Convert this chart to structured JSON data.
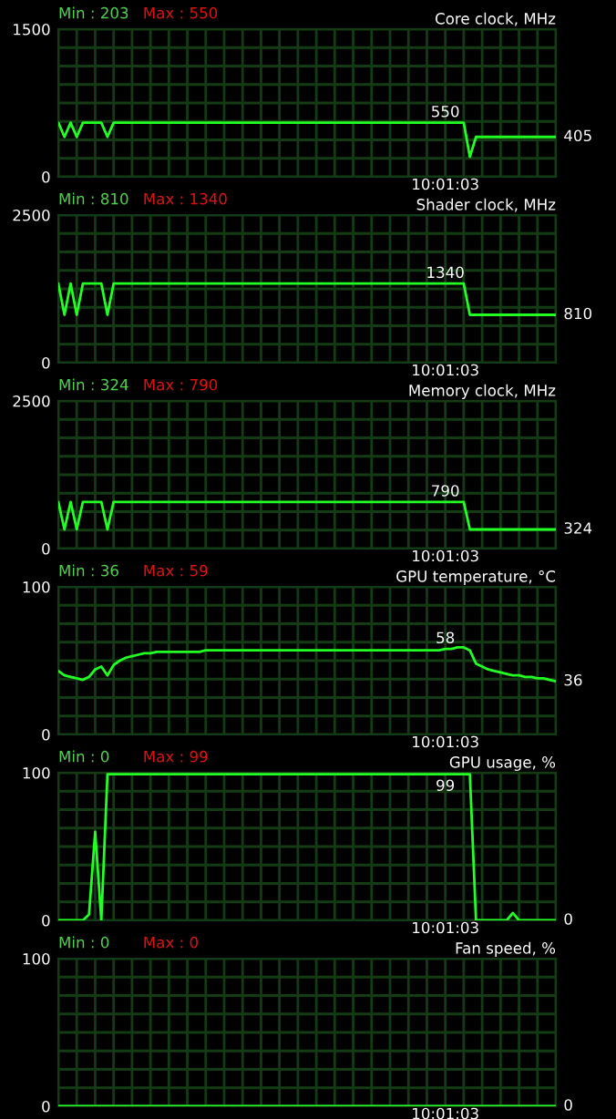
{
  "chart_data": [
    {
      "type": "line",
      "title": "Core clock, MHz",
      "annotations": [
        "Min : 203",
        "Max : 550"
      ],
      "categories": [
        null,
        null,
        null,
        null,
        null,
        null,
        null,
        null,
        null,
        null,
        null,
        null,
        null,
        null,
        null,
        null,
        null,
        null,
        null,
        null,
        null,
        null,
        null,
        null,
        null,
        null,
        null,
        null,
        null,
        null,
        null,
        null,
        null,
        null,
        null,
        null,
        null,
        null,
        null,
        null,
        null,
        null,
        null,
        null,
        null,
        null,
        null,
        null,
        null,
        null,
        null,
        null,
        null,
        null,
        null,
        null,
        null,
        null,
        null,
        null,
        null,
        null,
        null,
        "10:01:03",
        null,
        null,
        null,
        null,
        null,
        null,
        null,
        null,
        null,
        null,
        null,
        null,
        null,
        null,
        null,
        null,
        null,
        null
      ],
      "ylim": [
        0,
        1500
      ],
      "yticks": [
        0,
        {
          "value": 187.5,
          "label": null
        },
        {
          "value": 375,
          "label": null
        },
        {
          "value": 562.5,
          "label": null
        },
        {
          "value": 750,
          "label": null
        },
        {
          "value": 937.5,
          "label": null
        },
        {
          "value": 1125,
          "label": null
        },
        {
          "value": 1312.5,
          "label": null
        },
        1500
      ],
      "grid": true,
      "series": [
        {
          "color": "#22ff22",
          "values": [
            550,
            405,
            550,
            405,
            550,
            550,
            550,
            550,
            405,
            550,
            550,
            550,
            550,
            550,
            550,
            550,
            550,
            550,
            550,
            550,
            550,
            550,
            550,
            550,
            550,
            550,
            550,
            550,
            550,
            550,
            550,
            550,
            550,
            550,
            550,
            550,
            550,
            550,
            550,
            550,
            550,
            550,
            550,
            550,
            550,
            550,
            550,
            550,
            550,
            550,
            550,
            550,
            550,
            550,
            550,
            550,
            550,
            550,
            550,
            550,
            550,
            550,
            550,
            550,
            550,
            550,
            550,
            203,
            405,
            405,
            405,
            405,
            405,
            405,
            405,
            405,
            405,
            405,
            405,
            405,
            405,
            405
          ],
          "value_labels": [
            null,
            null,
            null,
            null,
            null,
            null,
            null,
            null,
            null,
            null,
            null,
            null,
            null,
            null,
            null,
            null,
            null,
            null,
            null,
            null,
            null,
            null,
            null,
            null,
            null,
            null,
            null,
            null,
            null,
            null,
            null,
            null,
            null,
            null,
            null,
            null,
            null,
            null,
            null,
            null,
            null,
            null,
            null,
            null,
            null,
            null,
            null,
            null,
            null,
            null,
            null,
            null,
            null,
            null,
            null,
            null,
            null,
            null,
            null,
            null,
            null,
            null,
            null,
            "550",
            null,
            null,
            null,
            null,
            null,
            null,
            null,
            null,
            null,
            null,
            null,
            null,
            null,
            null,
            null,
            null,
            null,
            "405"
          ]
        }
      ]
    },
    {
      "type": "line",
      "title": "Shader clock, MHz",
      "annotations": [
        "Min : 810",
        "Max : 1340"
      ],
      "categories": [
        null,
        null,
        null,
        null,
        null,
        null,
        null,
        null,
        null,
        null,
        null,
        null,
        null,
        null,
        null,
        null,
        null,
        null,
        null,
        null,
        null,
        null,
        null,
        null,
        null,
        null,
        null,
        null,
        null,
        null,
        null,
        null,
        null,
        null,
        null,
        null,
        null,
        null,
        null,
        null,
        null,
        null,
        null,
        null,
        null,
        null,
        null,
        null,
        null,
        null,
        null,
        null,
        null,
        null,
        null,
        null,
        null,
        null,
        null,
        null,
        null,
        null,
        null,
        "10:01:03",
        null,
        null,
        null,
        null,
        null,
        null,
        null,
        null,
        null,
        null,
        null,
        null,
        null,
        null,
        null,
        null,
        null,
        null
      ],
      "ylim": [
        0,
        2500
      ],
      "yticks": [
        0,
        {
          "value": 312.5,
          "label": null
        },
        {
          "value": 625,
          "label": null
        },
        {
          "value": 937.5,
          "label": null
        },
        {
          "value": 1250,
          "label": null
        },
        {
          "value": 1562.5,
          "label": null
        },
        {
          "value": 1875,
          "label": null
        },
        {
          "value": 2187.5,
          "label": null
        },
        2500
      ],
      "grid": true,
      "series": [
        {
          "color": "#22ff22",
          "values": [
            1340,
            810,
            1340,
            810,
            1340,
            1340,
            1340,
            1340,
            810,
            1340,
            1340,
            1340,
            1340,
            1340,
            1340,
            1340,
            1340,
            1340,
            1340,
            1340,
            1340,
            1340,
            1340,
            1340,
            1340,
            1340,
            1340,
            1340,
            1340,
            1340,
            1340,
            1340,
            1340,
            1340,
            1340,
            1340,
            1340,
            1340,
            1340,
            1340,
            1340,
            1340,
            1340,
            1340,
            1340,
            1340,
            1340,
            1340,
            1340,
            1340,
            1340,
            1340,
            1340,
            1340,
            1340,
            1340,
            1340,
            1340,
            1340,
            1340,
            1340,
            1340,
            1340,
            1340,
            1340,
            1340,
            1340,
            810,
            810,
            810,
            810,
            810,
            810,
            810,
            810,
            810,
            810,
            810,
            810,
            810,
            810,
            810
          ],
          "value_labels": [
            null,
            null,
            null,
            null,
            null,
            null,
            null,
            null,
            null,
            null,
            null,
            null,
            null,
            null,
            null,
            null,
            null,
            null,
            null,
            null,
            null,
            null,
            null,
            null,
            null,
            null,
            null,
            null,
            null,
            null,
            null,
            null,
            null,
            null,
            null,
            null,
            null,
            null,
            null,
            null,
            null,
            null,
            null,
            null,
            null,
            null,
            null,
            null,
            null,
            null,
            null,
            null,
            null,
            null,
            null,
            null,
            null,
            null,
            null,
            null,
            null,
            null,
            null,
            "1340",
            null,
            null,
            null,
            null,
            null,
            null,
            null,
            null,
            null,
            null,
            null,
            null,
            null,
            null,
            null,
            null,
            null,
            "810"
          ]
        }
      ]
    },
    {
      "type": "line",
      "title": "Memory clock, MHz",
      "annotations": [
        "Min : 324",
        "Max : 790"
      ],
      "categories": [
        null,
        null,
        null,
        null,
        null,
        null,
        null,
        null,
        null,
        null,
        null,
        null,
        null,
        null,
        null,
        null,
        null,
        null,
        null,
        null,
        null,
        null,
        null,
        null,
        null,
        null,
        null,
        null,
        null,
        null,
        null,
        null,
        null,
        null,
        null,
        null,
        null,
        null,
        null,
        null,
        null,
        null,
        null,
        null,
        null,
        null,
        null,
        null,
        null,
        null,
        null,
        null,
        null,
        null,
        null,
        null,
        null,
        null,
        null,
        null,
        null,
        null,
        null,
        "10:01:03",
        null,
        null,
        null,
        null,
        null,
        null,
        null,
        null,
        null,
        null,
        null,
        null,
        null,
        null,
        null,
        null,
        null,
        null
      ],
      "ylim": [
        0,
        2500
      ],
      "yticks": [
        0,
        {
          "value": 312.5,
          "label": null
        },
        {
          "value": 625,
          "label": null
        },
        {
          "value": 937.5,
          "label": null
        },
        {
          "value": 1250,
          "label": null
        },
        {
          "value": 1562.5,
          "label": null
        },
        {
          "value": 1875,
          "label": null
        },
        {
          "value": 2187.5,
          "label": null
        },
        2500
      ],
      "grid": true,
      "series": [
        {
          "color": "#22ff22",
          "values": [
            790,
            324,
            790,
            324,
            790,
            790,
            790,
            790,
            324,
            790,
            790,
            790,
            790,
            790,
            790,
            790,
            790,
            790,
            790,
            790,
            790,
            790,
            790,
            790,
            790,
            790,
            790,
            790,
            790,
            790,
            790,
            790,
            790,
            790,
            790,
            790,
            790,
            790,
            790,
            790,
            790,
            790,
            790,
            790,
            790,
            790,
            790,
            790,
            790,
            790,
            790,
            790,
            790,
            790,
            790,
            790,
            790,
            790,
            790,
            790,
            790,
            790,
            790,
            790,
            790,
            790,
            790,
            324,
            324,
            324,
            324,
            324,
            324,
            324,
            324,
            324,
            324,
            324,
            324,
            324,
            324,
            324
          ],
          "value_labels": [
            null,
            null,
            null,
            null,
            null,
            null,
            null,
            null,
            null,
            null,
            null,
            null,
            null,
            null,
            null,
            null,
            null,
            null,
            null,
            null,
            null,
            null,
            null,
            null,
            null,
            null,
            null,
            null,
            null,
            null,
            null,
            null,
            null,
            null,
            null,
            null,
            null,
            null,
            null,
            null,
            null,
            null,
            null,
            null,
            null,
            null,
            null,
            null,
            null,
            null,
            null,
            null,
            null,
            null,
            null,
            null,
            null,
            null,
            null,
            null,
            null,
            null,
            null,
            "790",
            null,
            null,
            null,
            null,
            null,
            null,
            null,
            null,
            null,
            null,
            null,
            null,
            null,
            null,
            null,
            null,
            null,
            "324"
          ]
        }
      ]
    },
    {
      "type": "line",
      "title": "GPU temperature, °C",
      "annotations": [
        "Min : 36",
        "Max : 59"
      ],
      "categories": [
        null,
        null,
        null,
        null,
        null,
        null,
        null,
        null,
        null,
        null,
        null,
        null,
        null,
        null,
        null,
        null,
        null,
        null,
        null,
        null,
        null,
        null,
        null,
        null,
        null,
        null,
        null,
        null,
        null,
        null,
        null,
        null,
        null,
        null,
        null,
        null,
        null,
        null,
        null,
        null,
        null,
        null,
        null,
        null,
        null,
        null,
        null,
        null,
        null,
        null,
        null,
        null,
        null,
        null,
        null,
        null,
        null,
        null,
        null,
        null,
        null,
        null,
        null,
        "10:01:03",
        null,
        null,
        null,
        null,
        null,
        null,
        null,
        null,
        null,
        null,
        null,
        null,
        null,
        null,
        null,
        null,
        null,
        null
      ],
      "ylim": [
        0,
        100
      ],
      "yticks": [
        0,
        {
          "value": 12.5,
          "label": null
        },
        {
          "value": 25,
          "label": null
        },
        {
          "value": 37.5,
          "label": null
        },
        {
          "value": 50,
          "label": null
        },
        {
          "value": 62.5,
          "label": null
        },
        {
          "value": 75,
          "label": null
        },
        {
          "value": 87.5,
          "label": null
        },
        100
      ],
      "grid": true,
      "series": [
        {
          "color": "#22ff22",
          "values": [
            43,
            40,
            39,
            38,
            37,
            39,
            44,
            46,
            40,
            47,
            50,
            52,
            53,
            54,
            55,
            55,
            56,
            56,
            56,
            56,
            56,
            56,
            56,
            56,
            57,
            57,
            57,
            57,
            57,
            57,
            57,
            57,
            57,
            57,
            57,
            57,
            57,
            57,
            57,
            57,
            57,
            57,
            57,
            57,
            57,
            57,
            57,
            57,
            57,
            57,
            57,
            57,
            57,
            57,
            57,
            57,
            57,
            57,
            57,
            57,
            57,
            57,
            57,
            58,
            58,
            59,
            59,
            57,
            48,
            46,
            44,
            43,
            42,
            41,
            40,
            40,
            39,
            39,
            38,
            38,
            37,
            36
          ],
          "value_labels": [
            null,
            null,
            null,
            null,
            null,
            null,
            null,
            null,
            null,
            null,
            null,
            null,
            null,
            null,
            null,
            null,
            null,
            null,
            null,
            null,
            null,
            null,
            null,
            null,
            null,
            null,
            null,
            null,
            null,
            null,
            null,
            null,
            null,
            null,
            null,
            null,
            null,
            null,
            null,
            null,
            null,
            null,
            null,
            null,
            null,
            null,
            null,
            null,
            null,
            null,
            null,
            null,
            null,
            null,
            null,
            null,
            null,
            null,
            null,
            null,
            null,
            null,
            null,
            "58",
            null,
            null,
            null,
            null,
            null,
            null,
            null,
            null,
            null,
            null,
            null,
            null,
            null,
            null,
            null,
            null,
            null,
            "36"
          ]
        }
      ]
    },
    {
      "type": "line",
      "title": "GPU usage, %",
      "annotations": [
        "Min : 0",
        "Max : 99"
      ],
      "categories": [
        null,
        null,
        null,
        null,
        null,
        null,
        null,
        null,
        null,
        null,
        null,
        null,
        null,
        null,
        null,
        null,
        null,
        null,
        null,
        null,
        null,
        null,
        null,
        null,
        null,
        null,
        null,
        null,
        null,
        null,
        null,
        null,
        null,
        null,
        null,
        null,
        null,
        null,
        null,
        null,
        null,
        null,
        null,
        null,
        null,
        null,
        null,
        null,
        null,
        null,
        null,
        null,
        null,
        null,
        null,
        null,
        null,
        null,
        null,
        null,
        null,
        null,
        null,
        "10:01:03",
        null,
        null,
        null,
        null,
        null,
        null,
        null,
        null,
        null,
        null,
        null,
        null,
        null,
        null,
        null,
        null,
        null,
        null
      ],
      "ylim": [
        0,
        100
      ],
      "yticks": [
        0,
        {
          "value": 12.5,
          "label": null
        },
        {
          "value": 25,
          "label": null
        },
        {
          "value": 37.5,
          "label": null
        },
        {
          "value": 50,
          "label": null
        },
        {
          "value": 62.5,
          "label": null
        },
        {
          "value": 75,
          "label": null
        },
        {
          "value": 87.5,
          "label": null
        },
        100
      ],
      "grid": true,
      "series": [
        {
          "color": "#22ff22",
          "values": [
            0,
            0,
            0,
            0,
            0,
            4,
            60,
            0,
            99,
            99,
            99,
            99,
            99,
            99,
            99,
            99,
            99,
            99,
            99,
            99,
            99,
            99,
            99,
            99,
            99,
            99,
            99,
            99,
            99,
            99,
            99,
            99,
            99,
            99,
            99,
            99,
            99,
            99,
            99,
            99,
            99,
            99,
            99,
            99,
            99,
            99,
            99,
            99,
            99,
            99,
            99,
            99,
            99,
            99,
            99,
            99,
            99,
            99,
            99,
            99,
            99,
            99,
            99,
            99,
            99,
            99,
            99,
            99,
            0,
            0,
            0,
            0,
            0,
            0,
            5,
            0,
            0,
            0,
            0,
            0,
            0,
            0
          ],
          "value_labels": [
            null,
            null,
            null,
            null,
            null,
            null,
            null,
            null,
            null,
            null,
            null,
            null,
            null,
            null,
            null,
            null,
            null,
            null,
            null,
            null,
            null,
            null,
            null,
            null,
            null,
            null,
            null,
            null,
            null,
            null,
            null,
            null,
            null,
            null,
            null,
            null,
            null,
            null,
            null,
            null,
            null,
            null,
            null,
            null,
            null,
            null,
            null,
            null,
            null,
            null,
            null,
            null,
            null,
            null,
            null,
            null,
            null,
            null,
            null,
            null,
            null,
            null,
            null,
            "99",
            null,
            null,
            null,
            null,
            null,
            null,
            null,
            null,
            null,
            null,
            null,
            null,
            null,
            null,
            null,
            null,
            null,
            "0"
          ]
        }
      ]
    },
    {
      "type": "line",
      "title": "Fan speed, %",
      "annotations": [
        "Min : 0",
        "Max : 0"
      ],
      "categories": [
        null,
        null,
        null,
        null,
        null,
        null,
        null,
        null,
        null,
        null,
        null,
        null,
        null,
        null,
        null,
        null,
        null,
        null,
        null,
        null,
        null,
        null,
        null,
        null,
        null,
        null,
        null,
        null,
        null,
        null,
        null,
        null,
        null,
        null,
        null,
        null,
        null,
        null,
        null,
        null,
        null,
        null,
        null,
        null,
        null,
        null,
        null,
        null,
        null,
        null,
        null,
        null,
        null,
        null,
        null,
        null,
        null,
        null,
        null,
        null,
        null,
        null,
        null,
        "10:01:03",
        null,
        null,
        null,
        null,
        null,
        null,
        null,
        null,
        null,
        null,
        null,
        null,
        null,
        null,
        null,
        null,
        null,
        null
      ],
      "ylim": [
        0,
        100
      ],
      "yticks": [
        0,
        {
          "value": 12.5,
          "label": null
        },
        {
          "value": 25,
          "label": null
        },
        {
          "value": 37.5,
          "label": null
        },
        {
          "value": 50,
          "label": null
        },
        {
          "value": 62.5,
          "label": null
        },
        {
          "value": 75,
          "label": null
        },
        {
          "value": 87.5,
          "label": null
        },
        100
      ],
      "grid": true,
      "series": [
        {
          "color": "#22ff22",
          "values": [
            0,
            0,
            0,
            0,
            0,
            0,
            0,
            0,
            0,
            0,
            0,
            0,
            0,
            0,
            0,
            0,
            0,
            0,
            0,
            0,
            0,
            0,
            0,
            0,
            0,
            0,
            0,
            0,
            0,
            0,
            0,
            0,
            0,
            0,
            0,
            0,
            0,
            0,
            0,
            0,
            0,
            0,
            0,
            0,
            0,
            0,
            0,
            0,
            0,
            0,
            0,
            0,
            0,
            0,
            0,
            0,
            0,
            0,
            0,
            0,
            0,
            0,
            0,
            0,
            0,
            0,
            0,
            0,
            0,
            0,
            0,
            0,
            0,
            0,
            0,
            0,
            0,
            0,
            0,
            0,
            0,
            0
          ],
          "value_labels": [
            null,
            null,
            null,
            null,
            null,
            null,
            null,
            null,
            null,
            null,
            null,
            null,
            null,
            null,
            null,
            null,
            null,
            null,
            null,
            null,
            null,
            null,
            null,
            null,
            null,
            null,
            null,
            null,
            null,
            null,
            null,
            null,
            null,
            null,
            null,
            null,
            null,
            null,
            null,
            null,
            null,
            null,
            null,
            null,
            null,
            null,
            null,
            null,
            null,
            null,
            null,
            null,
            null,
            null,
            null,
            null,
            null,
            null,
            null,
            null,
            null,
            null,
            null,
            null,
            null,
            null,
            null,
            null,
            null,
            null,
            null,
            null,
            null,
            null,
            null,
            null,
            null,
            null,
            null,
            null,
            null,
            "0"
          ]
        }
      ]
    }
  ]
}
